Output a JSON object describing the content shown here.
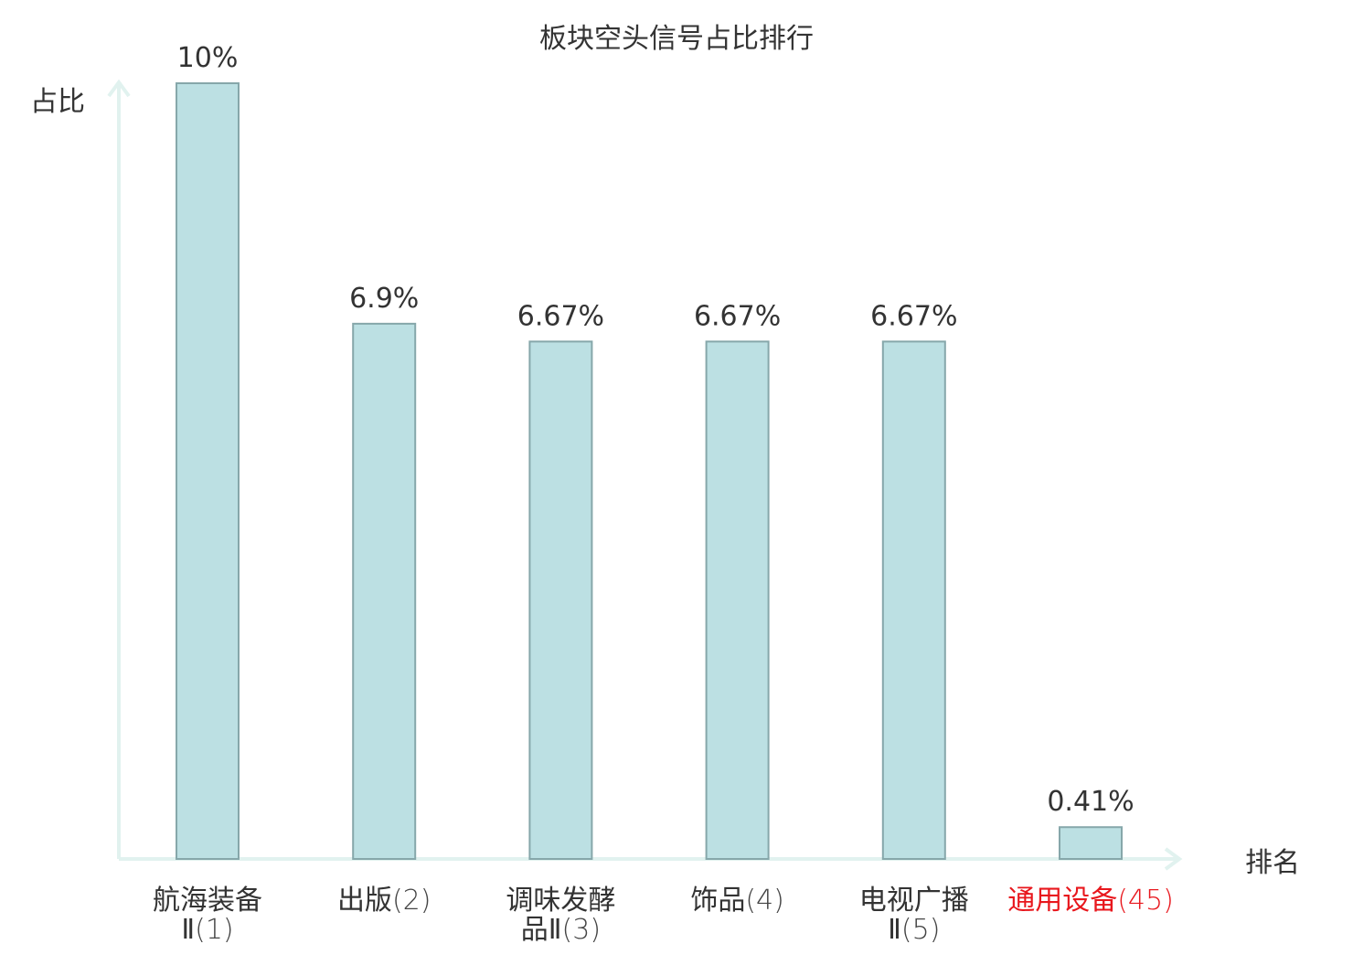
{
  "chart_data": {
    "type": "bar",
    "title": "板块空头信号占比排行",
    "ylabel": "占比",
    "xlabel": "排名",
    "categories": [
      {
        "name_lines": [
          "航海装备",
          "Ⅱ"
        ],
        "rank": "(1)",
        "highlight": false
      },
      {
        "name_lines": [
          "出版"
        ],
        "rank": "(2)",
        "highlight": false
      },
      {
        "name_lines": [
          "调味发酵",
          "品Ⅱ"
        ],
        "rank": "(3)",
        "highlight": false
      },
      {
        "name_lines": [
          "饰品"
        ],
        "rank": "(4)",
        "highlight": false
      },
      {
        "name_lines": [
          "电视广播",
          "Ⅱ"
        ],
        "rank": "(5)",
        "highlight": false
      },
      {
        "name_lines": [
          "通用设备"
        ],
        "rank": "(45)",
        "highlight": true
      }
    ],
    "values": [
      10,
      6.9,
      6.67,
      6.67,
      6.67,
      0.41
    ],
    "value_labels": [
      "10%",
      "6.9%",
      "6.67%",
      "6.67%",
      "6.67%",
      "0.41%"
    ],
    "ylim": [
      0,
      10
    ],
    "grid": false,
    "legend": "none",
    "colors": {
      "bar_fill": "#bce0e3",
      "bar_stroke": "#86a7aa",
      "axis": "#e1f2ef",
      "text": "#333333",
      "highlight_text": "#e8171d"
    }
  }
}
